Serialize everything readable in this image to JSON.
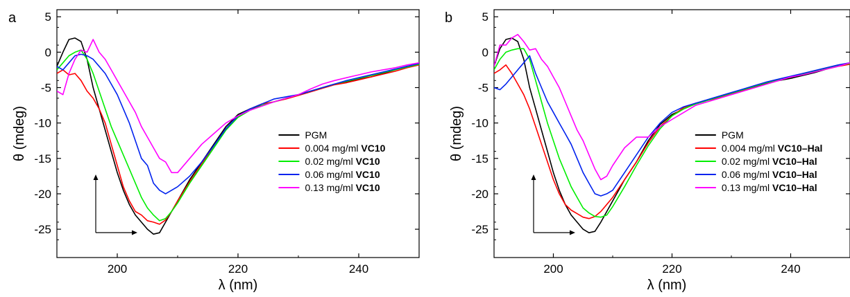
{
  "chart_data": [
    {
      "type": "line",
      "panel_label": "a",
      "xlabel": "λ (nm)",
      "ylabel": "θ (mdeg)",
      "xlim": [
        190,
        250
      ],
      "ylim": [
        -29,
        6
      ],
      "xticks": [
        200,
        220,
        240
      ],
      "yticks": [
        5,
        0,
        -5,
        -10,
        -15,
        -20,
        -25
      ],
      "legend_position": "lower-right",
      "grid": false,
      "series": [
        {
          "name": "PGM",
          "name_bold": "",
          "color": "#000000",
          "x": [
            190,
            191,
            192,
            193,
            194,
            195,
            196,
            197,
            198,
            199,
            200,
            201,
            202,
            203,
            204,
            205,
            206,
            207,
            208,
            209,
            210,
            212,
            214,
            216,
            218,
            220,
            222,
            224,
            226,
            228,
            230,
            232,
            234,
            236,
            238,
            240,
            242,
            244,
            246,
            248,
            250
          ],
          "y": [
            -2,
            0,
            1.8,
            2,
            1.5,
            -1,
            -5,
            -8,
            -11,
            -14,
            -17,
            -19.5,
            -21.5,
            -23,
            -24,
            -25,
            -25.7,
            -25.5,
            -24,
            -22.5,
            -21,
            -18,
            -15.5,
            -13,
            -10.5,
            -8.8,
            -8,
            -7.5,
            -7,
            -6.5,
            -6,
            -5.5,
            -5,
            -4.5,
            -4.2,
            -3.8,
            -3.5,
            -3,
            -2.5,
            -2,
            -1.7
          ]
        },
        {
          "name": "0.004 mg/ml ",
          "name_bold": "VC10",
          "color": "#ff0000",
          "x": [
            190,
            191,
            192,
            193,
            194,
            195,
            196,
            197,
            198,
            199,
            200,
            201,
            202,
            203,
            204,
            205,
            206,
            207,
            208,
            209,
            210,
            212,
            214,
            216,
            218,
            220,
            222,
            224,
            226,
            228,
            230,
            232,
            234,
            236,
            238,
            240,
            242,
            244,
            246,
            248,
            250
          ],
          "y": [
            -3,
            -2.5,
            -3.2,
            -3,
            -4,
            -5.5,
            -6.5,
            -8,
            -10,
            -13,
            -16,
            -19,
            -21,
            -22.5,
            -23,
            -23.8,
            -24,
            -24.3,
            -23.7,
            -22.5,
            -21,
            -18.3,
            -15.8,
            -13.2,
            -10.8,
            -9,
            -8,
            -7.3,
            -7,
            -6.6,
            -6.1,
            -5.6,
            -5.1,
            -4.6,
            -4.3,
            -3.9,
            -3.5,
            -3.1,
            -2.7,
            -2.2,
            -1.8
          ]
        },
        {
          "name": "0.02 mg/ml ",
          "name_bold": "VC10",
          "color": "#00ee00",
          "x": [
            190,
            191,
            192,
            193,
            194,
            195,
            196,
            197,
            198,
            199,
            200,
            201,
            202,
            203,
            204,
            205,
            206,
            207,
            208,
            209,
            210,
            212,
            214,
            216,
            218,
            220,
            222,
            224,
            226,
            228,
            230,
            232,
            234,
            236,
            238,
            240,
            242,
            244,
            246,
            248,
            250
          ],
          "y": [
            -2.5,
            -1.5,
            -0.5,
            0,
            0.3,
            -1,
            -3,
            -5.5,
            -8,
            -10.5,
            -12.5,
            -14.5,
            -16.5,
            -18.5,
            -20.5,
            -22,
            -23,
            -23.8,
            -23.5,
            -22.5,
            -21.3,
            -18.5,
            -16,
            -13.5,
            -11,
            -9.2,
            -8.2,
            -7.5,
            -7,
            -6.5,
            -6,
            -5.5,
            -5,
            -4.5,
            -4.1,
            -3.7,
            -3.3,
            -2.9,
            -2.5,
            -2.1,
            -1.7
          ]
        },
        {
          "name": "0.06 mg/ml ",
          "name_bold": "VC10",
          "color": "#0022ee",
          "x": [
            190,
            191,
            192,
            193,
            194,
            195,
            196,
            197,
            198,
            199,
            200,
            201,
            202,
            203,
            204,
            205,
            206,
            207,
            208,
            209,
            210,
            212,
            214,
            216,
            218,
            220,
            222,
            224,
            226,
            228,
            230,
            232,
            234,
            236,
            238,
            240,
            242,
            244,
            246,
            248,
            250
          ],
          "y": [
            -2,
            -2.5,
            -1.5,
            -0.5,
            -0.3,
            -0.5,
            -1,
            -2,
            -3,
            -4.5,
            -6,
            -8,
            -10,
            -12.5,
            -15,
            -16,
            -18.5,
            -19.5,
            -20,
            -19.5,
            -19,
            -17.5,
            -15.5,
            -13.2,
            -10.8,
            -9,
            -8,
            -7.3,
            -6.6,
            -6.3,
            -6,
            -5.5,
            -5,
            -4.5,
            -4,
            -3.6,
            -3.2,
            -2.8,
            -2.4,
            -2,
            -1.6
          ]
        },
        {
          "name": "0.13 mg/ml ",
          "name_bold": "VC10",
          "color": "#ff00ff",
          "x": [
            190,
            191,
            192,
            193,
            194,
            195,
            196,
            197,
            198,
            199,
            200,
            201,
            202,
            203,
            204,
            205,
            206,
            207,
            208,
            209,
            210,
            212,
            214,
            216,
            218,
            220,
            222,
            224,
            226,
            228,
            230,
            232,
            234,
            236,
            238,
            240,
            242,
            244,
            246,
            248,
            250
          ],
          "y": [
            -5.5,
            -6,
            -3,
            -1,
            0.3,
            0,
            1.8,
            0,
            -1,
            -2.5,
            -4,
            -5.5,
            -7,
            -8.5,
            -10.5,
            -12,
            -13.5,
            -15,
            -15.5,
            -17,
            -17,
            -15,
            -13,
            -11.5,
            -10,
            -9,
            -8.2,
            -7.6,
            -7,
            -6.5,
            -6,
            -5.2,
            -4.5,
            -4,
            -3.6,
            -3.2,
            -2.8,
            -2.5,
            -2.2,
            -1.8,
            -1.5
          ]
        }
      ]
    },
    {
      "type": "line",
      "panel_label": "b",
      "xlabel": "λ (nm)",
      "ylabel": "θ (mdeg)",
      "xlim": [
        190,
        250
      ],
      "ylim": [
        -29,
        6
      ],
      "xticks": [
        200,
        220,
        240
      ],
      "yticks": [
        5,
        0,
        -5,
        -10,
        -15,
        -20,
        -25
      ],
      "legend_position": "lower-right",
      "grid": false,
      "series": [
        {
          "name": "PGM",
          "name_bold": "",
          "color": "#000000",
          "x": [
            190,
            191,
            192,
            193,
            194,
            195,
            196,
            197,
            198,
            199,
            200,
            201,
            202,
            203,
            204,
            205,
            206,
            207,
            208,
            209,
            210,
            212,
            214,
            216,
            218,
            220,
            222,
            224,
            226,
            228,
            230,
            232,
            234,
            236,
            238,
            240,
            242,
            244,
            246,
            248,
            250
          ],
          "y": [
            -2,
            0.5,
            1.8,
            2,
            1.5,
            -1,
            -5,
            -8,
            -11,
            -14,
            -17,
            -19.5,
            -21.5,
            -23,
            -24,
            -25,
            -25.5,
            -25.3,
            -24,
            -22.5,
            -21,
            -18,
            -15.5,
            -12.5,
            -10.2,
            -8.8,
            -8,
            -7.3,
            -6.8,
            -6.4,
            -5.9,
            -5.4,
            -4.9,
            -4.4,
            -4,
            -3.7,
            -3.3,
            -2.9,
            -2.4,
            -1.9,
            -1.6
          ]
        },
        {
          "name": "0.004 mg/ml ",
          "name_bold": "VC10–Hal",
          "color": "#ff0000",
          "x": [
            190,
            191,
            192,
            193,
            194,
            195,
            196,
            197,
            198,
            199,
            200,
            201,
            202,
            203,
            204,
            205,
            206,
            207,
            208,
            209,
            210,
            212,
            214,
            216,
            218,
            220,
            222,
            224,
            226,
            228,
            230,
            232,
            234,
            236,
            238,
            240,
            242,
            244,
            246,
            248,
            250
          ],
          "y": [
            -3,
            -2.5,
            -1.8,
            -3,
            -4.5,
            -6,
            -8,
            -10.5,
            -13,
            -15.5,
            -18,
            -20,
            -21.5,
            -22.3,
            -22.8,
            -23.3,
            -23.5,
            -23.2,
            -22.5,
            -21.5,
            -20.5,
            -18,
            -15.5,
            -12.8,
            -10.5,
            -9,
            -7.8,
            -7.2,
            -6.8,
            -6.4,
            -5.9,
            -5.4,
            -4.8,
            -4.3,
            -3.9,
            -3.5,
            -3.1,
            -2.7,
            -2.4,
            -2,
            -1.7
          ]
        },
        {
          "name": "0.02 mg/ml ",
          "name_bold": "VC10–Hal",
          "color": "#00ee00",
          "x": [
            190,
            191,
            192,
            193,
            194,
            195,
            196,
            197,
            198,
            199,
            200,
            201,
            202,
            203,
            204,
            205,
            206,
            207,
            208,
            209,
            210,
            212,
            214,
            216,
            218,
            220,
            222,
            224,
            226,
            228,
            230,
            232,
            234,
            236,
            238,
            240,
            242,
            244,
            246,
            248,
            250
          ],
          "y": [
            -2.5,
            -1,
            0,
            0.3,
            0.5,
            0.5,
            -1,
            -4,
            -7,
            -10,
            -12.5,
            -15,
            -17,
            -19,
            -20.5,
            -22,
            -22.7,
            -23.2,
            -23.3,
            -23,
            -21.8,
            -19,
            -16,
            -13.2,
            -10.8,
            -9,
            -8,
            -7.3,
            -6.8,
            -6.3,
            -5.8,
            -5.3,
            -4.8,
            -4.3,
            -3.9,
            -3.5,
            -3.1,
            -2.7,
            -2.3,
            -1.9,
            -1.6
          ]
        },
        {
          "name": "0.06 mg/ml ",
          "name_bold": "VC10–Hal",
          "color": "#0022ee",
          "x": [
            190,
            191,
            192,
            193,
            194,
            195,
            196,
            197,
            198,
            199,
            200,
            201,
            202,
            203,
            204,
            205,
            206,
            207,
            208,
            209,
            210,
            212,
            214,
            216,
            218,
            220,
            222,
            224,
            226,
            228,
            230,
            232,
            234,
            236,
            238,
            240,
            242,
            244,
            246,
            248,
            250
          ],
          "y": [
            -5,
            -5.3,
            -4.5,
            -3.5,
            -2.5,
            -1.5,
            -0.5,
            -3,
            -5,
            -7,
            -8.5,
            -10,
            -11.5,
            -13,
            -15,
            -17,
            -18.5,
            -20,
            -20.3,
            -20,
            -19.5,
            -17,
            -14.5,
            -12,
            -10,
            -8.5,
            -7.7,
            -7.2,
            -6.7,
            -6.2,
            -5.7,
            -5.2,
            -4.7,
            -4.2,
            -3.8,
            -3.4,
            -3,
            -2.6,
            -2.2,
            -1.8,
            -1.5
          ]
        },
        {
          "name": "0.13 mg/ml ",
          "name_bold": "VC10–Hal",
          "color": "#ff00ff",
          "x": [
            190,
            191,
            192,
            193,
            194,
            195,
            196,
            197,
            198,
            199,
            200,
            201,
            202,
            203,
            204,
            205,
            206,
            207,
            208,
            209,
            210,
            212,
            214,
            216,
            218,
            220,
            222,
            224,
            226,
            228,
            230,
            232,
            234,
            236,
            238,
            240,
            242,
            244,
            246,
            248,
            250
          ],
          "y": [
            -2,
            1,
            1,
            2,
            2.5,
            1.5,
            0.3,
            0.5,
            -1,
            -2,
            -3.5,
            -5,
            -7,
            -9,
            -11,
            -12.5,
            -14.5,
            -16.5,
            -18,
            -17.5,
            -16,
            -13.5,
            -12,
            -12,
            -10.5,
            -9.5,
            -8.5,
            -7.5,
            -7,
            -6.5,
            -6,
            -5.5,
            -5,
            -4.5,
            -4,
            -3.5,
            -3.2,
            -2.8,
            -2.4,
            -2,
            -1.5
          ]
        }
      ]
    }
  ]
}
